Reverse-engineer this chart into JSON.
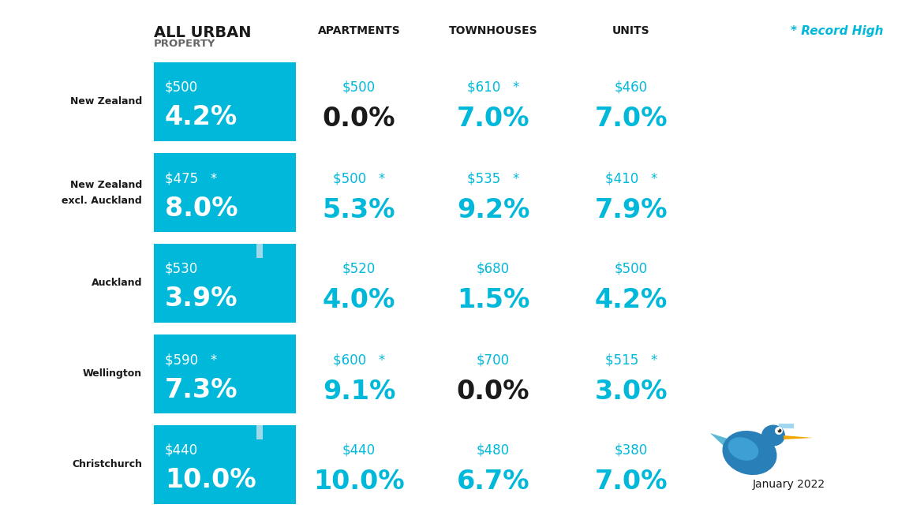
{
  "background_color": "#ffffff",
  "teal_box_color": "#00B8D9",
  "teal_text_color": "#00B8D9",
  "black_text_color": "#1a1a1a",
  "white_text_color": "#ffffff",
  "gray_text_color": "#666666",
  "header": {
    "col1_line1": "ALL URBAN",
    "col1_line2": "PROPERTY",
    "col2": "APARTMENTS",
    "col3": "TOWNHOUSES",
    "col4": "UNITS",
    "record_high": "* Record High"
  },
  "rows": [
    {
      "label_line1": "New Zealand",
      "label_line2": "",
      "col1_price": "$500",
      "col1_pct": "4.2%",
      "col1_record": false,
      "col1_has_bar": false,
      "col2_price": "$500",
      "col2_pct": "0.0%",
      "col2_record": false,
      "col2_black_pct": true,
      "col3_price": "$610",
      "col3_pct": "7.0%",
      "col3_record": true,
      "col3_black_pct": false,
      "col4_price": "$460",
      "col4_pct": "7.0%",
      "col4_record": false,
      "col4_black_pct": false
    },
    {
      "label_line1": "New Zealand",
      "label_line2": "excl. Auckland",
      "col1_price": "$475",
      "col1_pct": "8.0%",
      "col1_record": true,
      "col1_has_bar": false,
      "col2_price": "$500",
      "col2_pct": "5.3%",
      "col2_record": true,
      "col2_black_pct": false,
      "col3_price": "$535",
      "col3_pct": "9.2%",
      "col3_record": true,
      "col3_black_pct": false,
      "col4_price": "$410",
      "col4_pct": "7.9%",
      "col4_record": true,
      "col4_black_pct": false
    },
    {
      "label_line1": "Auckland",
      "label_line2": "",
      "col1_price": "$530",
      "col1_pct": "3.9%",
      "col1_record": false,
      "col1_has_bar": true,
      "col2_price": "$520",
      "col2_pct": "4.0%",
      "col2_record": false,
      "col2_black_pct": false,
      "col3_price": "$680",
      "col3_pct": "1.5%",
      "col3_record": false,
      "col3_black_pct": false,
      "col4_price": "$500",
      "col4_pct": "4.2%",
      "col4_record": false,
      "col4_black_pct": false
    },
    {
      "label_line1": "Wellington",
      "label_line2": "",
      "col1_price": "$590",
      "col1_pct": "7.3%",
      "col1_record": true,
      "col1_has_bar": false,
      "col2_price": "$600",
      "col2_pct": "9.1%",
      "col2_record": true,
      "col2_black_pct": false,
      "col3_price": "$700",
      "col3_pct": "0.0%",
      "col3_record": false,
      "col3_black_pct": true,
      "col4_price": "$515",
      "col4_pct": "3.0%",
      "col4_record": true,
      "col4_black_pct": false
    },
    {
      "label_line1": "Christchurch",
      "label_line2": "",
      "col1_price": "$440",
      "col1_pct": "10.0%",
      "col1_record": false,
      "col1_has_bar": true,
      "col2_price": "$440",
      "col2_pct": "10.0%",
      "col2_record": false,
      "col2_black_pct": false,
      "col3_price": "$480",
      "col3_pct": "6.7%",
      "col3_record": false,
      "col3_black_pct": false,
      "col4_price": "$380",
      "col4_pct": "7.0%",
      "col4_record": false,
      "col4_black_pct": false
    }
  ],
  "footer": "January 2022"
}
